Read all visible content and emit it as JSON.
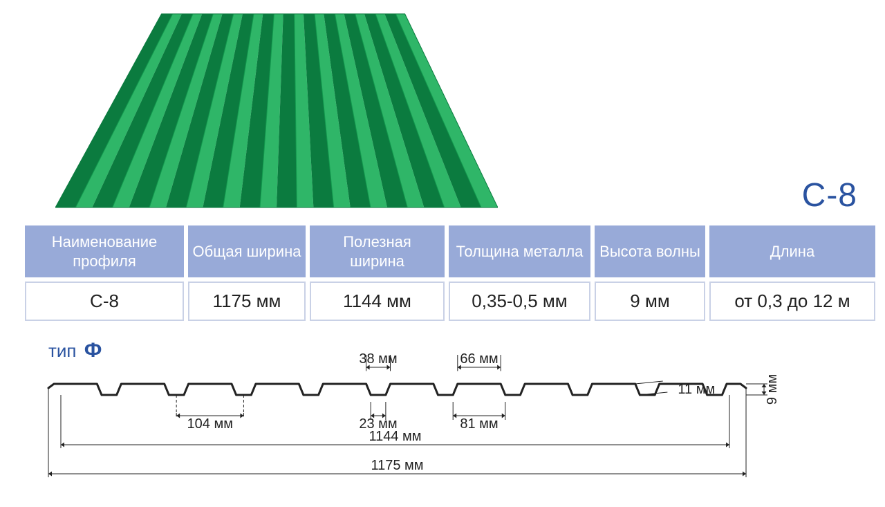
{
  "product_label": "С-8",
  "colors": {
    "accent_blue": "#2a53a0",
    "header_bg": "#98aad8",
    "cell_border": "#c9d1e6",
    "sheet_green_light": "#2fb668",
    "sheet_green_mid": "#139a4e",
    "sheet_green_dark": "#0b7b3f",
    "dim_line": "#222222"
  },
  "sheet3d": {
    "rib_count": 12,
    "top_width_ratio": 0.55
  },
  "table": {
    "headers": [
      "Наименование профиля",
      "Общая ширина",
      "Полезная ширина",
      "Толщина металла",
      "Высота волны",
      "Длина"
    ],
    "row": [
      "С-8",
      "1175 мм",
      "1144 мм",
      "0,35-0,5 мм",
      "9 мм",
      "от 0,3 до 12 м"
    ],
    "header_fontsize": 22,
    "cell_fontsize": 26
  },
  "profile": {
    "type_prefix": "тип",
    "type_letter": "Ф",
    "rib_count": 10,
    "flat_top_mm": 66,
    "notch_top_mm": 38,
    "notch_bottom_mm": 23,
    "pitch_mm": 104,
    "flat_bottom_mm": 81,
    "slope_mm": 11,
    "useful_width_mm": 1144,
    "total_width_mm": 1175,
    "height_mm": 9,
    "labels": {
      "d38": "38 мм",
      "d66": "66 мм",
      "d104": "104 мм",
      "d23": "23 мм",
      "d81": "81 мм",
      "d11": "11 мм",
      "d1144": "1144 мм",
      "d1175": "1175 мм",
      "d9": "9 мм"
    },
    "line_width": 3,
    "dim_line_width": 1,
    "font_size": 20
  }
}
